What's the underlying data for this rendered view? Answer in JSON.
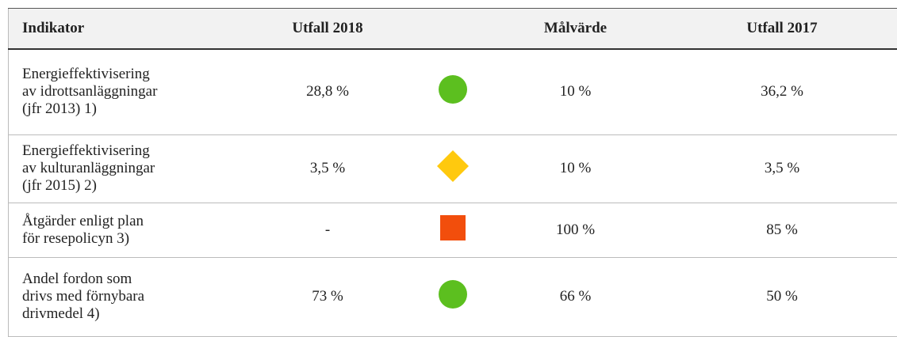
{
  "table": {
    "header": [
      "Indikator",
      "Utfall 2018",
      "Målvärde",
      "Utfall 2017"
    ],
    "rows": [
      {
        "indicator": [
          "Energieffektivisering",
          "av idrottsanläggningar",
          "(jfr 2013) 1)"
        ],
        "outcome_2018": "28,8 %",
        "target": "10 %",
        "outcome_2017": "36,2 %"
      },
      {
        "indicator": [
          "Energieffektivisering",
          "av kulturanläggningar",
          "(jfr 2015) 2)"
        ],
        "outcome_2018": "3,5 %",
        "target": "10 %",
        "outcome_2017": "3,5 %"
      },
      {
        "indicator": [
          "Åtgärder enligt plan",
          "för resepolicyn 3)"
        ],
        "outcome_2018": "-",
        "target": "100 %",
        "outcome_2017": "85 %"
      },
      {
        "indicator": [
          "Andel fordon som",
          "drivs med förnybara",
          "drivmedel 4)"
        ],
        "outcome_2018": "73 %",
        "target": "66 %",
        "outcome_2017": "50 %"
      }
    ]
  }
}
